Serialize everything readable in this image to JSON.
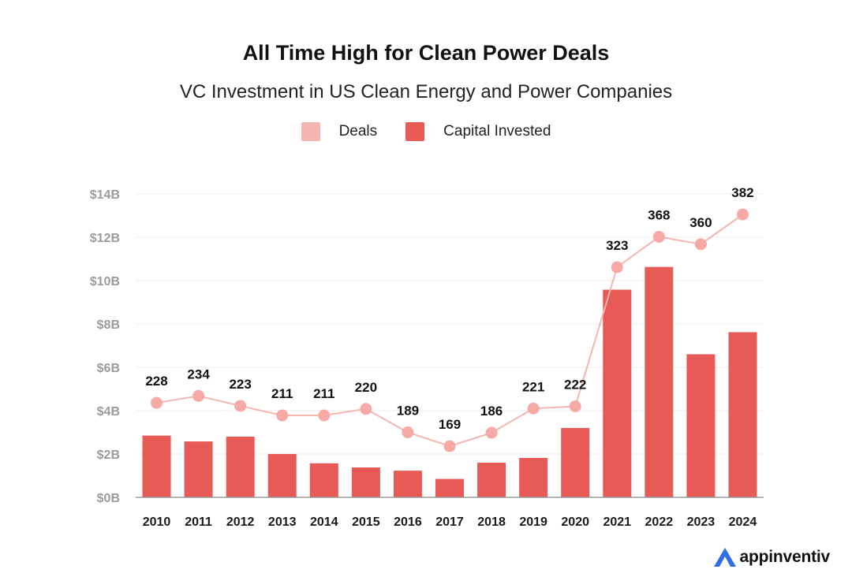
{
  "colors": {
    "bar": "#e85a55",
    "line": "#f5b5b0",
    "marker": "#f7aaa5",
    "grid": "#ececec",
    "axis": "#9a9a9a",
    "tick": "#9b9b9b",
    "logo_accent": "#2f6ee8"
  },
  "logo": {
    "text": "appinventiv",
    "icon": "triangle-a-icon"
  },
  "chart_data": {
    "type": "bar+line",
    "title": "All Time High for Clean Power Deals",
    "subtitle": "VC Investment in US Clean Energy and Power Companies",
    "legend": [
      {
        "name": "Deals",
        "kind": "line"
      },
      {
        "name": "Capital Invested",
        "kind": "bar"
      }
    ],
    "categories": [
      "2010",
      "2011",
      "2012",
      "2013",
      "2014",
      "2015",
      "2016",
      "2017",
      "2018",
      "2019",
      "2020",
      "2021",
      "2022",
      "2023",
      "2024"
    ],
    "y_ticks": [
      "$0B",
      "$2B",
      "$4B",
      "$6B",
      "$8B",
      "$10B",
      "$12B",
      "$14B"
    ],
    "ylim": [
      0,
      14
    ],
    "series": [
      {
        "name": "Capital Invested",
        "type": "bar",
        "unit": "$B",
        "values": [
          2.85,
          2.58,
          2.8,
          2.0,
          1.57,
          1.38,
          1.23,
          0.85,
          1.6,
          1.82,
          3.2,
          9.58,
          10.63,
          6.6,
          7.62
        ]
      },
      {
        "name": "Deals",
        "type": "line",
        "values": [
          228,
          234,
          223,
          211,
          211,
          220,
          189,
          169,
          186,
          221,
          222,
          323,
          368,
          360,
          382
        ],
        "labels": [
          "228",
          "234",
          "223",
          "211",
          "211",
          "220",
          "189",
          "169",
          "186",
          "221",
          "222",
          "323",
          "368",
          "360",
          "382"
        ],
        "plot_y_B": [
          4.36,
          4.68,
          4.22,
          3.78,
          3.78,
          4.08,
          3.0,
          2.36,
          2.98,
          4.1,
          4.2,
          10.62,
          12.02,
          11.68,
          13.05
        ]
      }
    ]
  }
}
